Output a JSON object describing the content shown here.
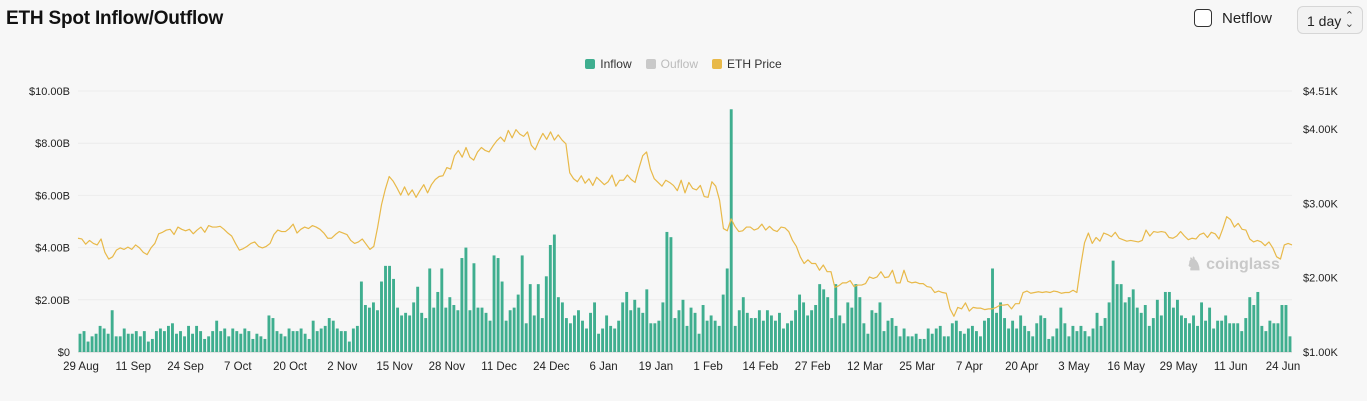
{
  "header": {
    "title": "ETH Spot Inflow/Outflow",
    "netflow_label": "Netflow",
    "interval_value": "1 day"
  },
  "watermark": "coinglass",
  "colors": {
    "inflow": "#3fae8f",
    "outflow": "#c9c9c9",
    "price": "#e8b949"
  },
  "chart_data": {
    "type": "bar",
    "legend": [
      {
        "name": "Inflow",
        "active": true
      },
      {
        "name": "Ouflow",
        "active": false
      },
      {
        "name": "ETH Price",
        "active": true
      }
    ],
    "legend_position": "top-center",
    "left_axis": {
      "ticks": [
        "$0",
        "$2.00B",
        "$4.00B",
        "$6.00B",
        "$8.00B",
        "$10.00B"
      ],
      "ylim": [
        0,
        10
      ]
    },
    "right_axis": {
      "ticks": [
        "$1.00K",
        "$2.00K",
        "$3.00K",
        "$4.00K",
        "$4.51K"
      ],
      "ylim": [
        1000,
        4510
      ]
    },
    "x_ticks": [
      "29 Aug",
      "11 Sep",
      "24 Sep",
      "7 Oct",
      "20 Oct",
      "2 Nov",
      "15 Nov",
      "28 Nov",
      "11 Dec",
      "24 Dec",
      "6 Jan",
      "19 Jan",
      "1 Feb",
      "14 Feb",
      "27 Feb",
      "12 Mar",
      "25 Mar",
      "7 Apr",
      "20 Apr",
      "3 May",
      "16 May",
      "29 May",
      "11 Jun",
      "24 Jun"
    ],
    "grid": "horizontal",
    "inflow_billions": [
      0.7,
      0.8,
      0.4,
      0.6,
      0.7,
      1.0,
      0.9,
      0.7,
      1.6,
      0.6,
      0.6,
      0.9,
      0.7,
      0.7,
      0.8,
      0.6,
      0.8,
      0.4,
      0.5,
      0.8,
      0.9,
      0.8,
      1.0,
      1.1,
      0.7,
      0.8,
      0.6,
      1.0,
      0.7,
      1.0,
      0.8,
      0.5,
      0.6,
      0.8,
      1.2,
      0.8,
      0.9,
      0.6,
      0.9,
      0.8,
      0.7,
      0.9,
      0.8,
      0.5,
      0.7,
      0.6,
      0.5,
      1.4,
      1.3,
      0.8,
      0.7,
      0.6,
      0.9,
      0.8,
      0.8,
      0.9,
      0.7,
      0.5,
      1.2,
      0.8,
      0.9,
      1.0,
      1.3,
      1.2,
      0.9,
      0.8,
      0.8,
      0.4,
      0.9,
      1.0,
      2.7,
      1.8,
      1.7,
      1.9,
      1.6,
      2.7,
      3.3,
      3.3,
      2.8,
      1.7,
      1.4,
      1.5,
      1.4,
      1.9,
      2.5,
      1.5,
      1.3,
      3.2,
      1.7,
      2.3,
      3.2,
      1.7,
      2.1,
      1.8,
      1.6,
      3.6,
      4.0,
      1.6,
      3.4,
      1.7,
      1.7,
      1.5,
      1.2,
      3.7,
      3.6,
      2.7,
      1.2,
      1.6,
      1.7,
      2.2,
      3.7,
      1.1,
      2.6,
      1.4,
      2.6,
      1.3,
      2.9,
      4.1,
      4.5,
      2.1,
      1.9,
      1.3,
      1.1,
      1.4,
      1.6,
      1.2,
      0.9,
      1.5,
      1.9,
      0.7,
      0.9,
      1.4,
      1.0,
      0.9,
      1.2,
      1.9,
      2.3,
      1.6,
      2.0,
      1.7,
      1.5,
      2.4,
      1.1,
      1.1,
      1.2,
      1.9,
      4.6,
      4.4,
      1.3,
      1.6,
      2.0,
      1.0,
      1.7,
      1.5,
      0.7,
      1.8,
      1.2,
      1.4,
      1.2,
      1.0,
      2.2,
      3.2,
      9.3,
      1.0,
      1.6,
      2.1,
      1.5,
      1.3,
      1.3,
      1.6,
      1.2,
      1.6,
      1.4,
      1.2,
      1.5,
      0.9,
      1.1,
      1.2,
      1.6,
      2.2,
      1.9,
      1.4,
      1.6,
      1.8,
      2.6,
      2.4,
      2.1,
      1.3,
      2.6,
      1.4,
      1.1,
      1.9,
      1.7,
      2.6,
      2.1,
      1.1,
      0.7,
      1.6,
      1.5,
      1.9,
      0.8,
      1.2,
      1.3,
      1.0,
      0.6,
      0.9,
      0.6,
      0.6,
      0.7,
      0.5,
      0.5,
      0.9,
      0.7,
      0.9,
      1.0,
      0.6,
      0.6,
      1.1,
      1.2,
      0.8,
      0.7,
      0.9,
      1.0,
      0.8,
      0.6,
      1.2,
      1.3,
      3.2,
      1.5,
      1.9,
      1.3,
      0.9,
      1.2,
      0.9,
      1.4,
      1.0,
      0.8,
      0.6,
      1.1,
      1.4,
      1.3,
      0.5,
      0.6,
      0.9,
      1.7,
      1.1,
      0.6,
      1.0,
      0.8,
      1.0,
      0.8,
      0.6,
      0.9,
      1.5,
      1.0,
      1.3,
      1.9,
      3.5,
      2.6,
      2.6,
      1.9,
      2.1,
      2.4,
      1.7,
      1.5,
      1.8,
      1.0,
      1.3,
      2.0,
      1.4,
      2.3,
      2.3,
      1.7,
      2.0,
      1.4,
      1.3,
      1.1,
      1.4,
      1.0,
      1.9,
      1.2,
      1.7,
      0.9,
      1.2,
      1.2,
      1.4,
      1.1,
      1.1,
      1.1,
      0.8,
      1.3,
      2.1,
      1.8,
      2.3,
      1.0,
      0.8,
      1.2,
      1.1,
      1.1,
      1.8,
      1.8,
      0.6
    ],
    "eth_price_usd": [
      2530,
      2520,
      2450,
      2500,
      2460,
      2440,
      2520,
      2340,
      2250,
      2280,
      2370,
      2400,
      2380,
      2410,
      2380,
      2440,
      2400,
      2340,
      2310,
      2400,
      2460,
      2590,
      2610,
      2640,
      2650,
      2580,
      2680,
      2650,
      2630,
      2650,
      2590,
      2640,
      2680,
      2610,
      2700,
      2680,
      2680,
      2690,
      2650,
      2600,
      2560,
      2460,
      2370,
      2390,
      2420,
      2460,
      2480,
      2420,
      2400,
      2420,
      2460,
      2580,
      2640,
      2620,
      2620,
      2660,
      2720,
      2600,
      2650,
      2680,
      2660,
      2700,
      2680,
      2650,
      2600,
      2530,
      2530,
      2580,
      2620,
      2600,
      2580,
      2500,
      2460,
      2480,
      2520,
      2450,
      2380,
      2420,
      2680,
      2980,
      3190,
      3360,
      3300,
      3210,
      3110,
      3220,
      3110,
      3180,
      3080,
      3170,
      3250,
      3140,
      3250,
      3320,
      3360,
      3370,
      3480,
      3460,
      3640,
      3710,
      3620,
      3750,
      3620,
      3580,
      3690,
      3750,
      3710,
      3690,
      3770,
      3840,
      3890,
      3830,
      3980,
      3880,
      3990,
      3930,
      3900,
      3960,
      3780,
      3720,
      3840,
      3940,
      3860,
      3960,
      3850,
      3920,
      3850,
      3800,
      3410,
      3330,
      3290,
      3370,
      3270,
      3330,
      3240,
      3350,
      3300,
      3250,
      3290,
      3380,
      3230,
      3310,
      3310,
      3380,
      3320,
      3280,
      3470,
      3640,
      3690,
      3460,
      3330,
      3280,
      3230,
      3310,
      3280,
      3240,
      3170,
      3310,
      3140,
      3280,
      3200,
      3180,
      3240,
      3090,
      3080,
      3290,
      3230,
      3040,
      2660,
      2630,
      2790,
      2690,
      2620,
      2630,
      2680,
      2680,
      2640,
      2660,
      2720,
      2640,
      2690,
      2640,
      2620,
      2680,
      2670,
      2620,
      2500,
      2420,
      2280,
      2190,
      2240,
      2190,
      2190,
      2100,
      2170,
      2080,
      2080,
      1870,
      1890,
      1930,
      1930,
      1960,
      1880,
      1900,
      1900,
      1920,
      2010,
      1990,
      2010,
      2080,
      2000,
      2010,
      2100,
      1930,
      1930,
      2100,
      1950,
      1930,
      1940,
      1920,
      1920,
      1880,
      1870,
      1800,
      1820,
      1800,
      1790,
      1580,
      1480,
      1600,
      1580,
      1660,
      1550,
      1600,
      1590,
      1590,
      1570,
      1580,
      1580,
      1600,
      1630,
      1630,
      1640,
      1580,
      1650,
      1650,
      1800,
      1820,
      1790,
      1800,
      1810,
      1800,
      1810,
      1800,
      1820,
      1810,
      1790,
      1800,
      1800,
      1830,
      1800,
      2160,
      2470,
      2600,
      2460,
      2540,
      2490,
      2600,
      2580,
      2550,
      2610,
      2530,
      2510,
      2490,
      2500,
      2490,
      2480,
      2500,
      2640,
      2560,
      2620,
      2610,
      2620,
      2610,
      2540,
      2530,
      2560,
      2620,
      2560,
      2510,
      2530,
      2520,
      2580,
      2600,
      2540,
      2610,
      2590,
      2520,
      2660,
      2820,
      2780,
      2680,
      2730,
      2650,
      2640,
      2520,
      2480,
      2500,
      2480,
      2430,
      2480,
      2400,
      2280,
      2250,
      2440,
      2460,
      2440
    ]
  }
}
